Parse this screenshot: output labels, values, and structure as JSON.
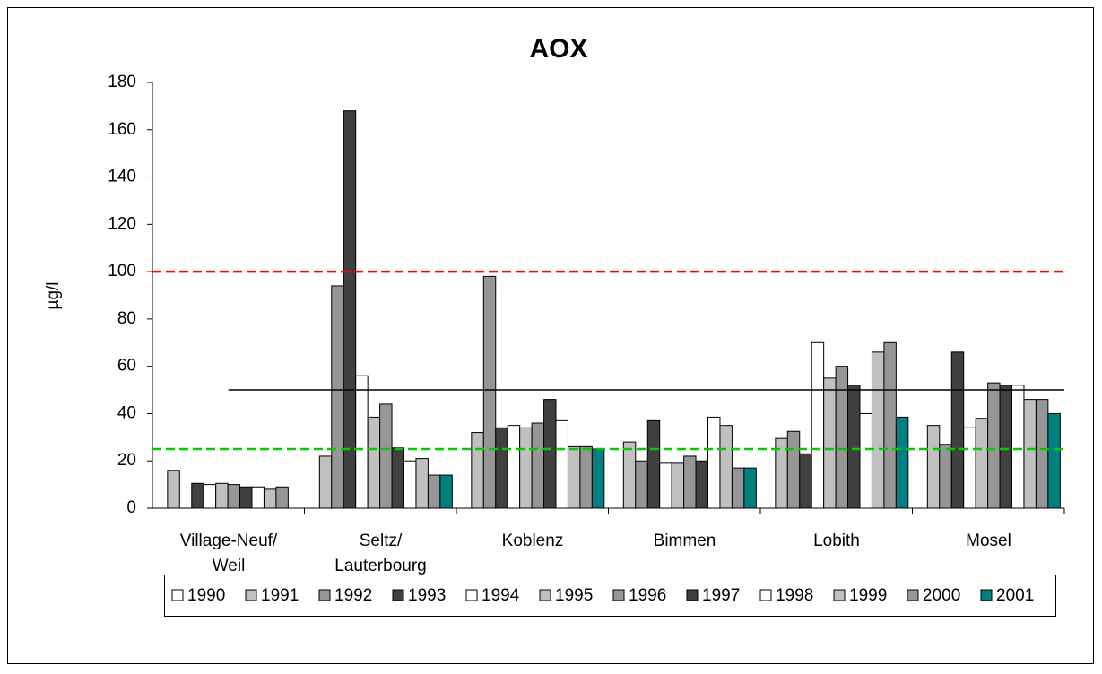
{
  "chart_data": {
    "type": "bar",
    "title": "AOX",
    "y_label": "µg/l",
    "categories": [
      "Village-Neuf/\nWeil",
      "Seltz/\nLauterbourg",
      "Koblenz",
      "Bimmen",
      "Lobith",
      "Mosel"
    ],
    "series": [
      {
        "name": "1990",
        "color": "#ffffff",
        "values": [
          null,
          null,
          null,
          null,
          null,
          null
        ]
      },
      {
        "name": "1991",
        "color": "#c0c0c0",
        "values": [
          16,
          22,
          32,
          28,
          29.5,
          35
        ]
      },
      {
        "name": "1992",
        "color": "#969696",
        "values": [
          null,
          94,
          98,
          20,
          32.5,
          27
        ]
      },
      {
        "name": "1993",
        "color": "#404040",
        "values": [
          10.5,
          168,
          34,
          37,
          23,
          66
        ]
      },
      {
        "name": "1994",
        "color": "#ffffff",
        "values": [
          10,
          56,
          35,
          19,
          70,
          34
        ]
      },
      {
        "name": "1995",
        "color": "#c0c0c0",
        "values": [
          10.5,
          38.5,
          34,
          19,
          55,
          38
        ]
      },
      {
        "name": "1996",
        "color": "#969696",
        "values": [
          10,
          44,
          36,
          22,
          60,
          53
        ]
      },
      {
        "name": "1997",
        "color": "#404040",
        "values": [
          9,
          25.5,
          46,
          20,
          52,
          52
        ]
      },
      {
        "name": "1998",
        "color": "#ffffff",
        "values": [
          9,
          20,
          37,
          38.5,
          40,
          52
        ]
      },
      {
        "name": "1999",
        "color": "#c0c0c0",
        "values": [
          8,
          21,
          26,
          35,
          66,
          46
        ]
      },
      {
        "name": "2000",
        "color": "#969696",
        "values": [
          9,
          14,
          26,
          17,
          70,
          46
        ]
      },
      {
        "name": "2001",
        "color": "#008080",
        "values": [
          null,
          14,
          25,
          17,
          38.5,
          40
        ]
      }
    ],
    "ylim": [
      0,
      180
    ],
    "yticks": [
      0,
      20,
      40,
      60,
      80,
      100,
      120,
      140,
      160,
      180
    ],
    "reference_lines": [
      {
        "value": 100,
        "color": "#ff0000",
        "style": "dashed"
      },
      {
        "value": 25,
        "color": "#00cc00",
        "style": "dashed"
      },
      {
        "value": 50,
        "color": "#000000",
        "style": "solid"
      }
    ],
    "legend": "bottom"
  }
}
